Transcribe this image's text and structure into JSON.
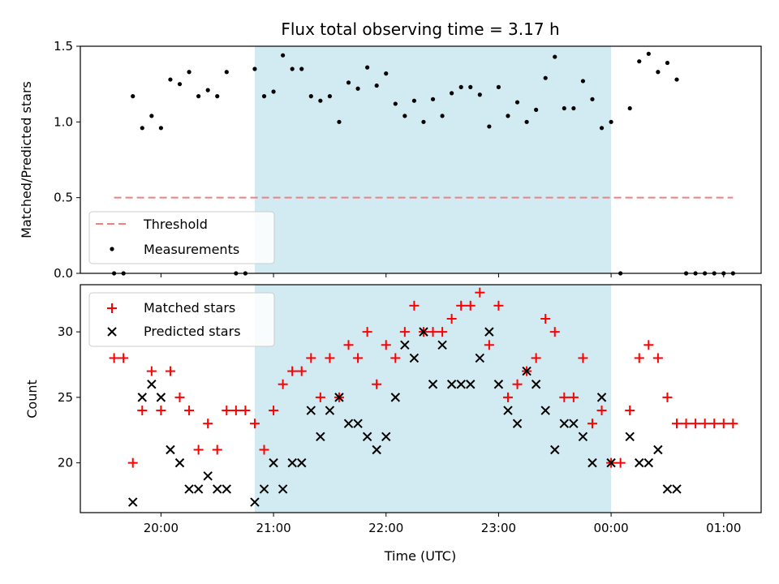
{
  "chart_data": [
    {
      "type": "scatter",
      "title": "Flux total observing time = 3.17 h",
      "xlabel": "",
      "ylabel": "Matched/Predicted stars",
      "ylim": [
        0,
        1.5
      ],
      "yticks": [
        "0.0",
        "0.5",
        "1.0",
        "1.5"
      ],
      "x_time_range": [
        "19:17",
        "01:20"
      ],
      "threshold": {
        "name": "Threshold",
        "value": 0.5,
        "x_start": "19:35",
        "x_end": "01:05",
        "color": "#f08080"
      },
      "legend": {
        "position": "lower-left",
        "entries": [
          "Threshold",
          "Measurements"
        ]
      },
      "shaded_interval": [
        "20:50",
        "00:00"
      ],
      "measurements": {
        "name": "Measurements",
        "color": "#000000",
        "points": [
          [
            "19:35",
            0.0
          ],
          [
            "19:40",
            0.0
          ],
          [
            "19:45",
            1.17
          ],
          [
            "19:50",
            0.96
          ],
          [
            "19:55",
            1.04
          ],
          [
            "20:00",
            0.96
          ],
          [
            "20:05",
            1.28
          ],
          [
            "20:10",
            1.25
          ],
          [
            "20:15",
            1.33
          ],
          [
            "20:20",
            1.17
          ],
          [
            "20:25",
            1.21
          ],
          [
            "20:30",
            1.17
          ],
          [
            "20:35",
            1.33
          ],
          [
            "20:40",
            0.0
          ],
          [
            "20:45",
            0.0
          ],
          [
            "20:50",
            1.35
          ],
          [
            "20:55",
            1.17
          ],
          [
            "21:00",
            1.2
          ],
          [
            "21:05",
            1.44
          ],
          [
            "21:10",
            1.35
          ],
          [
            "21:15",
            1.35
          ],
          [
            "21:20",
            1.17
          ],
          [
            "21:25",
            1.14
          ],
          [
            "21:30",
            1.17
          ],
          [
            "21:35",
            1.0
          ],
          [
            "21:40",
            1.26
          ],
          [
            "21:45",
            1.22
          ],
          [
            "21:50",
            1.36
          ],
          [
            "21:55",
            1.24
          ],
          [
            "22:00",
            1.32
          ],
          [
            "22:05",
            1.12
          ],
          [
            "22:10",
            1.04
          ],
          [
            "22:15",
            1.14
          ],
          [
            "22:20",
            1.0
          ],
          [
            "22:25",
            1.15
          ],
          [
            "22:30",
            1.04
          ],
          [
            "22:35",
            1.19
          ],
          [
            "22:40",
            1.23
          ],
          [
            "22:45",
            1.23
          ],
          [
            "22:50",
            1.18
          ],
          [
            "22:55",
            0.97
          ],
          [
            "23:00",
            1.23
          ],
          [
            "23:05",
            1.04
          ],
          [
            "23:10",
            1.13
          ],
          [
            "23:15",
            1.0
          ],
          [
            "23:20",
            1.08
          ],
          [
            "23:25",
            1.29
          ],
          [
            "23:30",
            1.43
          ],
          [
            "23:35",
            1.09
          ],
          [
            "23:40",
            1.09
          ],
          [
            "23:45",
            1.27
          ],
          [
            "23:50",
            1.15
          ],
          [
            "23:55",
            0.96
          ],
          [
            "00:00",
            1.0
          ],
          [
            "00:05",
            0.0
          ],
          [
            "00:10",
            1.09
          ],
          [
            "00:15",
            1.4
          ],
          [
            "00:20",
            1.45
          ],
          [
            "00:25",
            1.33
          ],
          [
            "00:30",
            1.39
          ],
          [
            "00:35",
            1.28
          ],
          [
            "00:40",
            0.0
          ],
          [
            "00:45",
            0.0
          ],
          [
            "00:50",
            0.0
          ],
          [
            "00:55",
            0.0
          ],
          [
            "01:00",
            0.0
          ],
          [
            "01:05",
            0.0
          ]
        ]
      }
    },
    {
      "type": "scatter",
      "title": "",
      "xlabel": "Time (UTC)",
      "ylabel": "Count",
      "ylim": [
        16.2,
        33.6
      ],
      "yticks": [
        "20",
        "25",
        "30"
      ],
      "xticks": [
        "20:00",
        "21:00",
        "22:00",
        "23:00",
        "00:00",
        "01:00"
      ],
      "x_time_range": [
        "19:17",
        "01:20"
      ],
      "legend": {
        "position": "upper-left",
        "entries": [
          "Matched stars",
          "Predicted stars"
        ]
      },
      "shaded_interval": [
        "20:50",
        "00:00"
      ],
      "series": [
        {
          "name": "Matched stars",
          "marker": "+",
          "color": "#ff0000",
          "points": [
            [
              "19:35",
              28
            ],
            [
              "19:40",
              28
            ],
            [
              "19:45",
              20
            ],
            [
              "19:50",
              24
            ],
            [
              "19:55",
              27
            ],
            [
              "20:00",
              24
            ],
            [
              "20:05",
              27
            ],
            [
              "20:10",
              25
            ],
            [
              "20:15",
              24
            ],
            [
              "20:20",
              21
            ],
            [
              "20:25",
              23
            ],
            [
              "20:30",
              21
            ],
            [
              "20:35",
              24
            ],
            [
              "20:40",
              24
            ],
            [
              "20:45",
              24
            ],
            [
              "20:50",
              23
            ],
            [
              "20:55",
              21
            ],
            [
              "21:00",
              24
            ],
            [
              "21:05",
              26
            ],
            [
              "21:10",
              27
            ],
            [
              "21:15",
              27
            ],
            [
              "21:20",
              28
            ],
            [
              "21:25",
              25
            ],
            [
              "21:30",
              28
            ],
            [
              "21:35",
              25
            ],
            [
              "21:40",
              29
            ],
            [
              "21:45",
              28
            ],
            [
              "21:50",
              30
            ],
            [
              "21:55",
              26
            ],
            [
              "22:00",
              29
            ],
            [
              "22:05",
              28
            ],
            [
              "22:10",
              30
            ],
            [
              "22:15",
              32
            ],
            [
              "22:20",
              30
            ],
            [
              "22:25",
              30
            ],
            [
              "22:30",
              30
            ],
            [
              "22:35",
              31
            ],
            [
              "22:40",
              32
            ],
            [
              "22:45",
              32
            ],
            [
              "22:50",
              33
            ],
            [
              "22:55",
              29
            ],
            [
              "23:00",
              32
            ],
            [
              "23:05",
              25
            ],
            [
              "23:10",
              26
            ],
            [
              "23:15",
              27
            ],
            [
              "23:20",
              28
            ],
            [
              "23:25",
              31
            ],
            [
              "23:30",
              30
            ],
            [
              "23:35",
              25
            ],
            [
              "23:40",
              25
            ],
            [
              "23:45",
              28
            ],
            [
              "23:50",
              23
            ],
            [
              "23:55",
              24
            ],
            [
              "00:00",
              20
            ],
            [
              "00:05",
              20
            ],
            [
              "00:10",
              24
            ],
            [
              "00:15",
              28
            ],
            [
              "00:20",
              29
            ],
            [
              "00:25",
              28
            ],
            [
              "00:30",
              25
            ],
            [
              "00:35",
              23
            ],
            [
              "00:40",
              23
            ],
            [
              "00:45",
              23
            ],
            [
              "00:50",
              23
            ],
            [
              "00:55",
              23
            ],
            [
              "01:00",
              23
            ],
            [
              "01:05",
              23
            ]
          ]
        },
        {
          "name": "Predicted stars",
          "marker": "x",
          "color": "#000000",
          "points": [
            [
              "19:45",
              17
            ],
            [
              "19:50",
              25
            ],
            [
              "19:55",
              26
            ],
            [
              "20:00",
              25
            ],
            [
              "20:05",
              21
            ],
            [
              "20:10",
              20
            ],
            [
              "20:15",
              18
            ],
            [
              "20:20",
              18
            ],
            [
              "20:25",
              19
            ],
            [
              "20:30",
              18
            ],
            [
              "20:35",
              18
            ],
            [
              "20:50",
              17
            ],
            [
              "20:55",
              18
            ],
            [
              "21:00",
              20
            ],
            [
              "21:05",
              18
            ],
            [
              "21:10",
              20
            ],
            [
              "21:15",
              20
            ],
            [
              "21:20",
              24
            ],
            [
              "21:25",
              22
            ],
            [
              "21:30",
              24
            ],
            [
              "21:35",
              25
            ],
            [
              "21:40",
              23
            ],
            [
              "21:45",
              23
            ],
            [
              "21:50",
              22
            ],
            [
              "21:55",
              21
            ],
            [
              "22:00",
              22
            ],
            [
              "22:05",
              25
            ],
            [
              "22:10",
              29
            ],
            [
              "22:15",
              28
            ],
            [
              "22:20",
              30
            ],
            [
              "22:25",
              26
            ],
            [
              "22:30",
              29
            ],
            [
              "22:35",
              26
            ],
            [
              "22:40",
              26
            ],
            [
              "22:45",
              26
            ],
            [
              "22:50",
              28
            ],
            [
              "22:55",
              30
            ],
            [
              "23:00",
              26
            ],
            [
              "23:05",
              24
            ],
            [
              "23:10",
              23
            ],
            [
              "23:15",
              27
            ],
            [
              "23:20",
              26
            ],
            [
              "23:25",
              24
            ],
            [
              "23:30",
              21
            ],
            [
              "23:35",
              23
            ],
            [
              "23:40",
              23
            ],
            [
              "23:45",
              22
            ],
            [
              "23:50",
              20
            ],
            [
              "23:55",
              25
            ],
            [
              "00:00",
              20
            ],
            [
              "00:10",
              22
            ],
            [
              "00:15",
              20
            ],
            [
              "00:20",
              20
            ],
            [
              "00:25",
              21
            ],
            [
              "00:30",
              18
            ],
            [
              "00:35",
              18
            ]
          ]
        }
      ]
    }
  ],
  "colors": {
    "shade": "#add8e6",
    "axis": "#000000"
  }
}
